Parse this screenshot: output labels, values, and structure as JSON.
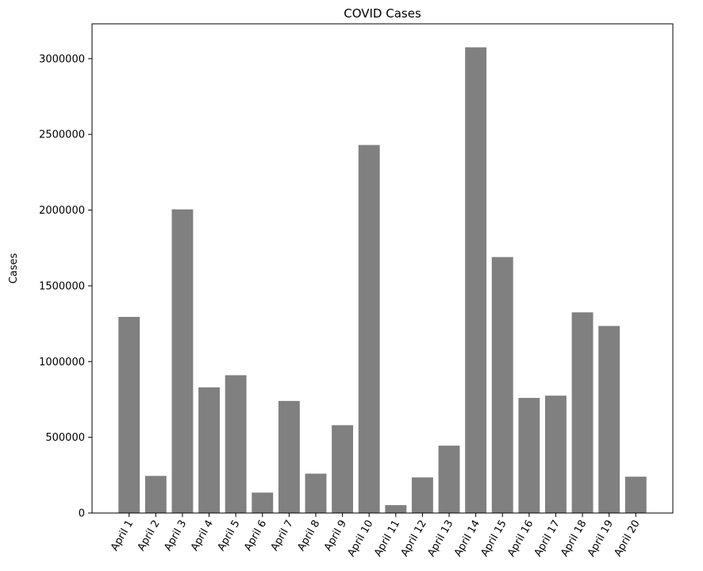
{
  "chart_data": {
    "type": "bar",
    "title": "COVID Cases",
    "xlabel": "",
    "ylabel": "Cases",
    "categories": [
      "April 1",
      "April 2",
      "April 3",
      "April 4",
      "April 5",
      "April 6",
      "April 7",
      "April 8",
      "April 9",
      "April 10",
      "April 11",
      "April 12",
      "April 13",
      "April 14",
      "April 15",
      "April 16",
      "April 17",
      "April 18",
      "April 19",
      "April 20"
    ],
    "values": [
      1295000,
      245000,
      2005000,
      830000,
      910000,
      135000,
      740000,
      260000,
      580000,
      2430000,
      52000,
      235000,
      445000,
      3075000,
      1690000,
      760000,
      775000,
      1325000,
      1235000,
      240000
    ],
    "ylim": [
      0,
      3230000
    ],
    "yticks": [
      0,
      500000,
      1000000,
      1500000,
      2000000,
      2500000,
      3000000
    ],
    "ytick_labels": [
      "0",
      "500000",
      "1000000",
      "1500000",
      "2000000",
      "2500000",
      "3000000"
    ],
    "bar_color": "#808080",
    "grid": false,
    "legend": "none"
  }
}
